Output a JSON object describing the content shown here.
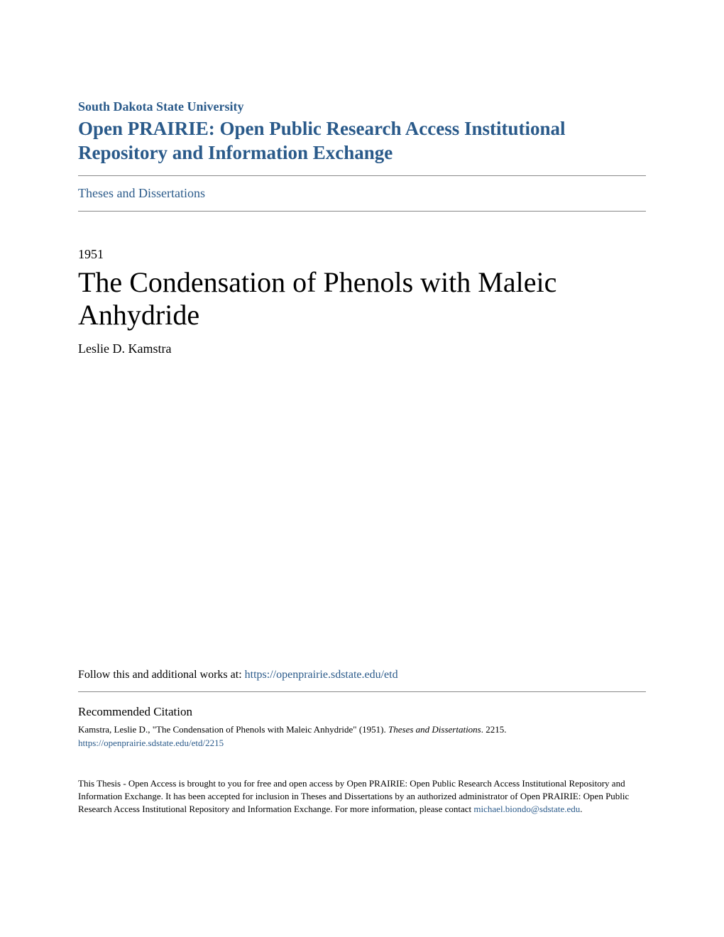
{
  "header": {
    "university": "South Dakota State University",
    "repository": "Open PRAIRIE: Open Public Research Access Institutional Repository and Information Exchange",
    "collection": "Theses and Dissertations"
  },
  "document": {
    "year": "1951",
    "title": "The Condensation of Phenols with Maleic Anhydride",
    "author": "Leslie D. Kamstra"
  },
  "follow": {
    "text": "Follow this and additional works at: ",
    "url": "https://openprairie.sdstate.edu/etd"
  },
  "citation": {
    "heading": "Recommended Citation",
    "text_part1": "Kamstra, Leslie D., \"The Condensation of Phenols with Maleic Anhydride\" (1951). ",
    "text_italic": "Theses and Dissertations",
    "text_part2": ". 2215.",
    "link": "https://openprairie.sdstate.edu/etd/2215"
  },
  "footer": {
    "text_part1": "This Thesis - Open Access is brought to you for free and open access by Open PRAIRIE: Open Public Research Access Institutional Repository and Information Exchange. It has been accepted for inclusion in Theses and Dissertations by an authorized administrator of Open PRAIRIE: Open Public Research Access Institutional Repository and Information Exchange. For more information, please contact ",
    "email": "michael.biondo@sdstate.edu",
    "text_part2": "."
  },
  "colors": {
    "link_color": "#2a5a8a",
    "text_color": "#000000",
    "divider_color": "#888888",
    "background_color": "#ffffff"
  }
}
